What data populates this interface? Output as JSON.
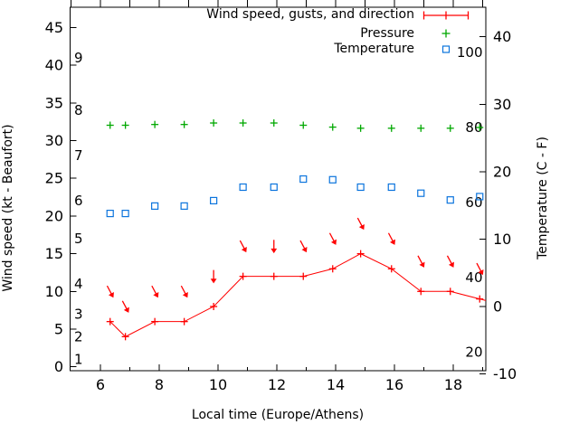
{
  "chart_data": {
    "type": "line",
    "title": "",
    "xlabel": "Local time (Europe/Athens)",
    "ylabel_left": "Wind speed (kt - Beaufort)",
    "ylabel_right": "Temperature (C - F)",
    "legend": {
      "position": "top-right-inside",
      "items": [
        {
          "label": "Wind speed, gusts, and direction",
          "symbol": "red-errorbar-line"
        },
        {
          "label": "Pressure",
          "symbol": "green-plus"
        },
        {
          "label": "Temperature",
          "symbol": "blue-open-square"
        }
      ]
    },
    "x_axis": {
      "unit": "hour",
      "ticks_major": [
        6,
        8,
        10,
        12,
        14,
        16,
        18
      ],
      "ticks_minor": [
        7,
        9,
        11,
        13,
        15,
        17,
        19
      ],
      "range": [
        4.97,
        19.12
      ]
    },
    "y_axis_left": {
      "unit": "kt",
      "ticks": [
        0,
        5,
        10,
        15,
        20,
        25,
        30,
        35,
        40,
        45
      ],
      "range": [
        0,
        47.7
      ]
    },
    "beaufort_scale": [
      {
        "bft": 1,
        "kt": 1
      },
      {
        "bft": 2,
        "kt": 4
      },
      {
        "bft": 3,
        "kt": 7
      },
      {
        "bft": 4,
        "kt": 11
      },
      {
        "bft": 5,
        "kt": 17
      },
      {
        "bft": 6,
        "kt": 22
      },
      {
        "bft": 7,
        "kt": 28
      },
      {
        "bft": 8,
        "kt": 34
      },
      {
        "bft": 9,
        "kt": 41
      }
    ],
    "y_axis_right": {
      "unit": "C",
      "ticks": [
        -10,
        0,
        10,
        20,
        30,
        40
      ],
      "range": [
        -10.5,
        44.4
      ]
    },
    "y_axis_inner_right_labels": [
      100,
      80,
      60,
      40,
      20
    ],
    "x": [
      6.33,
      6.85,
      7.85,
      8.85,
      9.85,
      10.85,
      11.9,
      12.9,
      13.9,
      14.85,
      15.9,
      16.9,
      17.9,
      18.9
    ],
    "series": [
      {
        "name": "wind_speed",
        "unit": "kt",
        "color": "#ff0000",
        "marker": "plus",
        "line": true,
        "extend_line_to_right_border": true,
        "values": [
          6,
          4,
          6,
          6,
          8,
          12,
          12,
          12,
          13,
          15,
          13,
          10,
          10,
          9
        ]
      },
      {
        "name": "wind_gust_direction",
        "unit": "kt",
        "color": "#ff0000",
        "marker": "arrow",
        "line": false,
        "values": [
          10,
          8,
          10,
          10,
          12,
          16,
          16,
          16,
          17,
          19,
          17,
          14,
          14,
          13
        ],
        "arrow_directions": [
          "down-right",
          "down-right",
          "down-right",
          "down-right",
          "down",
          "down-right",
          "down",
          "down-right",
          "down-right",
          "down-right",
          "down-right",
          "down-right",
          "down-right",
          "down-right"
        ]
      },
      {
        "name": "pressure",
        "unit": "inner-scale",
        "color": "#00a800",
        "marker": "plus",
        "line": false,
        "values": [
          80.6,
          80.6,
          80.8,
          80.8,
          81.2,
          81.2,
          81.2,
          80.6,
          80.1,
          79.8,
          79.8,
          79.8,
          79.8,
          80.0
        ]
      },
      {
        "name": "temperature",
        "unit": "C",
        "color": "#0b74dd",
        "marker": "square",
        "line": false,
        "values": [
          13.8,
          13.8,
          14.9,
          14.9,
          15.7,
          17.7,
          17.7,
          18.9,
          18.8,
          17.7,
          17.7,
          16.8,
          15.8,
          16.3
        ]
      }
    ],
    "colors": {
      "axis": "#000000",
      "background": "#ffffff"
    }
  }
}
